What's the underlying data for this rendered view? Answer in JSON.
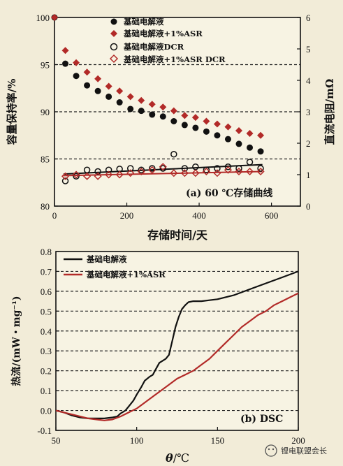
{
  "watermark_label": "锂电联盟会长",
  "chart_data": [
    {
      "type": "scatter",
      "panel_label": "(a) 60 ℃存储曲线",
      "xlabel": "存储时间/天",
      "ylabel_left": "容量保持率/%",
      "ylabel_right": "直流电阻/mΩ",
      "xlim": [
        0,
        680
      ],
      "ylim_left": [
        80,
        100
      ],
      "ylim_right": [
        0,
        6
      ],
      "xticks": [
        0,
        200,
        400,
        600
      ],
      "yticks_left": [
        80,
        85,
        90,
        95,
        100
      ],
      "yticks_right": [
        0,
        1,
        2,
        3,
        4,
        5,
        6
      ],
      "hlines_left": [
        85,
        90,
        95
      ],
      "legend_position": "top",
      "series": [
        {
          "name": "基础电解液",
          "axis": "left",
          "marker": "filled-circle",
          "color": "#111111",
          "x": [
            0,
            30,
            60,
            90,
            120,
            150,
            180,
            210,
            240,
            270,
            300,
            330,
            360,
            390,
            420,
            450,
            480,
            510,
            540,
            570
          ],
          "y": [
            100,
            95.1,
            93.8,
            92.8,
            92.2,
            91.6,
            91.0,
            90.3,
            90.1,
            89.7,
            89.5,
            89.0,
            88.6,
            88.3,
            87.9,
            87.5,
            87.1,
            86.6,
            86.2,
            85.8
          ]
        },
        {
          "name": "基础电解液+1%ASR",
          "axis": "left",
          "marker": "filled-diamond",
          "color": "#b22a28",
          "x": [
            0,
            30,
            60,
            90,
            120,
            150,
            180,
            210,
            240,
            270,
            300,
            330,
            360,
            390,
            420,
            450,
            480,
            510,
            540,
            570
          ],
          "y": [
            100,
            96.5,
            95.2,
            94.2,
            93.5,
            92.7,
            92.2,
            91.6,
            91.2,
            90.8,
            90.5,
            90.1,
            89.6,
            89.4,
            89.0,
            88.7,
            88.4,
            88.0,
            87.7,
            87.5
          ]
        },
        {
          "name": "基础电解液DCR",
          "axis": "right",
          "marker": "open-circle",
          "color": "#111111",
          "x": [
            30,
            60,
            90,
            120,
            150,
            180,
            210,
            240,
            270,
            300,
            330,
            360,
            390,
            420,
            450,
            480,
            510,
            540,
            570
          ],
          "y": [
            0.8,
            0.95,
            1.15,
            1.1,
            1.15,
            1.18,
            1.2,
            1.15,
            1.2,
            1.2,
            1.65,
            1.2,
            1.25,
            1.15,
            1.2,
            1.25,
            1.2,
            1.4,
            1.2
          ]
        },
        {
          "name": "基础电解液+1%ASR DCR",
          "axis": "right",
          "marker": "open-diamond",
          "color": "#b22a28",
          "x": [
            30,
            60,
            90,
            120,
            150,
            180,
            210,
            240,
            270,
            300,
            330,
            360,
            390,
            420,
            450,
            480,
            510,
            540,
            570
          ],
          "y": [
            0.95,
            1.0,
            0.95,
            0.95,
            1.0,
            1.0,
            1.05,
            1.1,
            1.15,
            1.25,
            1.05,
            1.05,
            1.05,
            1.1,
            1.05,
            1.15,
            1.1,
            1.1,
            1.1
          ]
        }
      ],
      "fit_lines": [
        {
          "name": "基础电解液DCR",
          "color": "#111111",
          "x": [
            25,
            575
          ],
          "y": [
            1.02,
            1.32
          ]
        },
        {
          "name": "基础电解液+1%ASR DCR",
          "color": "#b22a28",
          "x": [
            25,
            575
          ],
          "y": [
            0.97,
            1.1
          ]
        }
      ]
    },
    {
      "type": "line",
      "panel_label": "(b) DSC",
      "xlabel_symbol": "θ",
      "xlabel_unit": "/℃",
      "ylabel": "热流/(mW・mg⁻¹)",
      "xlim": [
        50,
        200
      ],
      "ylim": [
        -0.1,
        0.8
      ],
      "xticks": [
        50,
        100,
        150,
        200
      ],
      "yticks": [
        -0.1,
        0.0,
        0.1,
        0.2,
        0.3,
        0.4,
        0.5,
        0.6,
        0.7,
        0.8
      ],
      "hlines": [
        0.0,
        0.1,
        0.2,
        0.3,
        0.4,
        0.5,
        0.6,
        0.7
      ],
      "legend_position": "top-left",
      "series": [
        {
          "name": "基础电解液",
          "color": "#111111",
          "x": [
            50,
            55,
            60,
            65,
            70,
            75,
            80,
            85,
            88,
            90,
            93,
            95,
            98,
            100,
            103,
            105,
            108,
            110,
            112,
            114,
            116,
            118,
            120,
            122,
            124,
            126,
            128,
            130,
            132,
            135,
            140,
            145,
            150,
            155,
            160,
            170,
            180,
            190,
            200
          ],
          "y": [
            0.0,
            -0.01,
            -0.025,
            -0.035,
            -0.04,
            -0.04,
            -0.04,
            -0.035,
            -0.03,
            -0.015,
            0.0,
            0.02,
            0.05,
            0.08,
            0.12,
            0.15,
            0.17,
            0.18,
            0.21,
            0.24,
            0.25,
            0.26,
            0.28,
            0.35,
            0.42,
            0.47,
            0.51,
            0.53,
            0.545,
            0.55,
            0.55,
            0.555,
            0.56,
            0.57,
            0.58,
            0.61,
            0.64,
            0.67,
            0.7
          ]
        },
        {
          "name": "基础电解液+1%ASR",
          "color": "#b22a28",
          "x": [
            50,
            55,
            60,
            65,
            70,
            75,
            80,
            85,
            90,
            95,
            100,
            105,
            110,
            115,
            120,
            125,
            130,
            135,
            140,
            145,
            150,
            155,
            160,
            165,
            170,
            175,
            180,
            185,
            190,
            195,
            200
          ],
          "y": [
            0.0,
            -0.01,
            -0.02,
            -0.03,
            -0.04,
            -0.045,
            -0.05,
            -0.045,
            -0.03,
            -0.01,
            0.01,
            0.04,
            0.07,
            0.1,
            0.13,
            0.16,
            0.18,
            0.2,
            0.23,
            0.26,
            0.3,
            0.34,
            0.38,
            0.42,
            0.45,
            0.48,
            0.5,
            0.53,
            0.55,
            0.57,
            0.59
          ]
        }
      ]
    }
  ]
}
